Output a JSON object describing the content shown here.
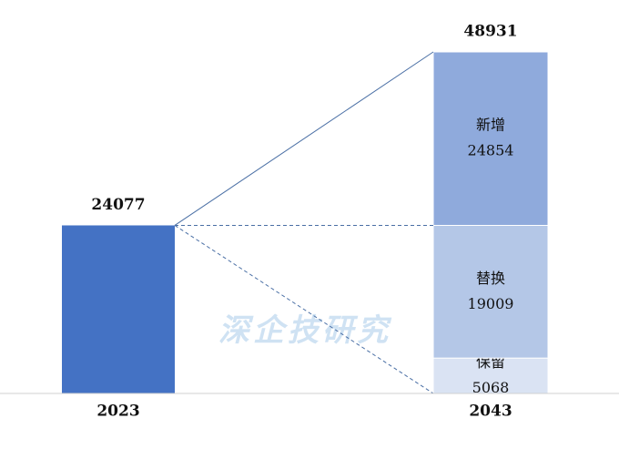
{
  "chart_data": {
    "type": "stacked-bar",
    "categories": [
      "2023",
      "2043"
    ],
    "base": {
      "value": 24077,
      "color": "#4472c4"
    },
    "total": 48931,
    "series": [
      {
        "name": "保留",
        "color": "#dae3f3",
        "value": 5068
      },
      {
        "name": "替换",
        "color": "#b4c7e7",
        "value": 19009
      },
      {
        "name": "新增",
        "color": "#8faadc",
        "value": 24854
      }
    ],
    "watermark": "深企技研究"
  }
}
